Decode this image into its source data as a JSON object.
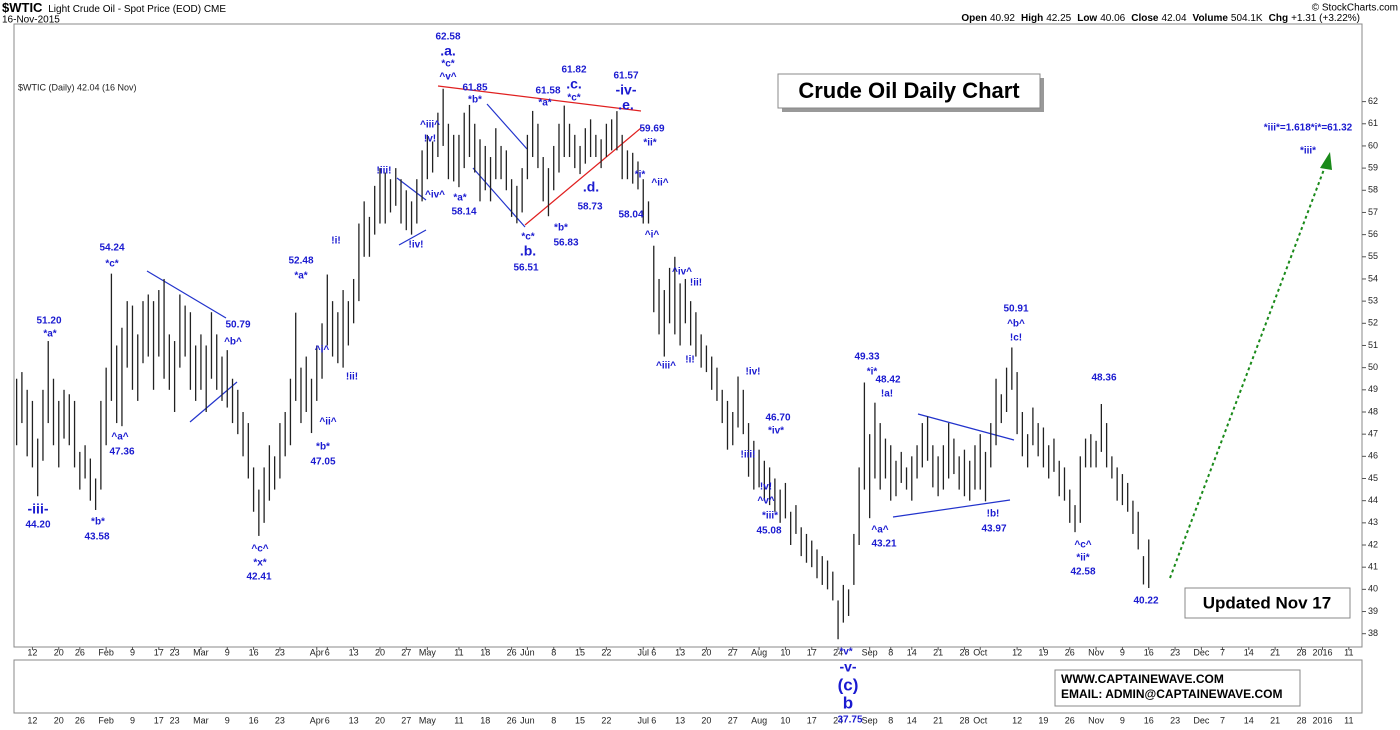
{
  "chart_data": {
    "type": "ohlc",
    "symbol": "$WTIC",
    "title": "Light Crude Oil - Spot Price (EOD) CME",
    "date": "16-Nov-2015",
    "quote": [
      {
        "label": "Open",
        "value": "40.92"
      },
      {
        "label": "High",
        "value": "42.25"
      },
      {
        "label": "Low",
        "value": "40.06"
      },
      {
        "label": "Close",
        "value": "42.04"
      },
      {
        "label": "Volume",
        "value": "504.1K"
      },
      {
        "label": "Chg",
        "value": "+1.31 (+3.22%)"
      }
    ],
    "credit": "© StockCharts.com",
    "legend": "$WTIC (Daily) 42.04 (16 Nov)",
    "headline": "Crude Oil Daily Chart",
    "updated": "Updated Nov 17",
    "website": "WWW.CAPTAINEWAVE.COM",
    "email": "EMAIL: ADMIN@CAPTAINEWAVE.COM",
    "color": "#222222",
    "annotation_color": "#1a1ad0",
    "categories": [
      null,
      null,
      null,
      "12",
      null,
      null,
      null,
      null,
      "20",
      null,
      null,
      null,
      "26",
      null,
      null,
      null,
      null,
      "Feb",
      null,
      null,
      null,
      null,
      "9",
      null,
      null,
      null,
      null,
      "17",
      null,
      null,
      "23",
      null,
      null,
      null,
      null,
      "Mar",
      null,
      null,
      null,
      null,
      "9",
      null,
      null,
      null,
      null,
      "16",
      null,
      null,
      null,
      null,
      "23",
      null,
      null,
      null,
      null,
      null,
      null,
      "Apr",
      null,
      "6",
      null,
      null,
      null,
      null,
      "13",
      null,
      null,
      null,
      null,
      "20",
      null,
      null,
      null,
      null,
      "27",
      null,
      null,
      null,
      "May",
      null,
      null,
      null,
      null,
      null,
      "11",
      null,
      null,
      null,
      null,
      "18",
      null,
      null,
      null,
      null,
      "26",
      null,
      null,
      "Jun",
      null,
      null,
      null,
      null,
      "8",
      null,
      null,
      null,
      null,
      "15",
      null,
      null,
      null,
      null,
      "22",
      null,
      null,
      null,
      null,
      null,
      null,
      "Jul",
      null,
      "6",
      null,
      null,
      null,
      null,
      "13",
      null,
      null,
      null,
      null,
      "20",
      null,
      null,
      null,
      null,
      "27",
      null,
      null,
      null,
      null,
      "Aug",
      null,
      null,
      null,
      null,
      "10",
      null,
      null,
      null,
      null,
      "17",
      null,
      null,
      null,
      null,
      "24",
      null,
      null,
      null,
      null,
      null,
      "Sep",
      null,
      null,
      null,
      "8",
      null,
      null,
      null,
      "14",
      null,
      null,
      null,
      null,
      "21",
      null,
      null,
      null,
      null,
      "28",
      null,
      null,
      "Oct",
      null,
      null,
      null,
      null,
      null,
      null,
      "12",
      null,
      null,
      null,
      null,
      "19",
      null,
      null,
      null,
      null,
      "26",
      null,
      null,
      null,
      null,
      "Nov",
      null,
      null,
      null,
      null,
      "9",
      null,
      null,
      null,
      null,
      "16",
      null,
      null,
      null,
      null,
      "23",
      null,
      null,
      null,
      null,
      "Dec",
      null,
      null,
      null,
      "7",
      null,
      null,
      null,
      null,
      "14",
      null,
      null,
      null,
      null,
      "21",
      null,
      null,
      null,
      null,
      "28",
      null,
      null,
      null,
      "2016",
      null,
      null,
      null,
      null,
      "11",
      null,
      null
    ],
    "high": [
      49.5,
      49.8,
      49.0,
      48.5,
      46.8,
      49.0,
      51.2,
      49.5,
      48.5,
      49.0,
      48.8,
      48.5,
      46.2,
      46.5,
      45.9,
      45.0,
      48.5,
      50.0,
      54.24,
      51.0,
      51.8,
      53.0,
      52.8,
      51.5,
      53.0,
      53.3,
      53.0,
      53.5,
      54.0,
      51.5,
      51.2,
      53.3,
      52.8,
      52.5,
      51.0,
      51.5,
      51.0,
      52.5,
      51.5,
      50.5,
      50.79,
      49.5,
      49.0,
      48.0,
      47.5,
      45.5,
      44.5,
      45.5,
      46.5,
      46.0,
      47.5,
      48.0,
      49.5,
      52.48,
      50.0,
      50.5,
      49.5,
      51.0,
      52.0,
      54.2,
      53.0,
      52.5,
      53.5,
      53.0,
      54.0,
      56.5,
      57.5,
      56.8,
      58.2,
      59.0,
      58.8,
      58.5,
      59.0,
      58.5,
      58.0,
      57.5,
      58.5,
      59.8,
      60.5,
      60.2,
      61.5,
      62.58,
      61.0,
      60.5,
      60.5,
      61.5,
      61.85,
      61.0,
      60.3,
      60.0,
      59.5,
      60.8,
      60.0,
      59.8,
      58.5,
      58.2,
      59.0,
      60.5,
      61.58,
      61.0,
      59.5,
      59.0,
      60.0,
      61.0,
      61.82,
      61.0,
      60.5,
      60.0,
      60.8,
      61.2,
      60.5,
      60.3,
      61.0,
      61.2,
      61.57,
      60.5,
      59.8,
      59.69,
      59.3,
      58.5,
      57.5,
      55.5,
      54.0,
      53.5,
      54.5,
      55.0,
      53.8,
      54.0,
      53.0,
      52.5,
      51.5,
      51.0,
      50.5,
      50.0,
      49.0,
      48.5,
      48.0,
      49.6,
      49.0,
      47.5,
      46.7,
      46.3,
      45.8,
      45.5,
      45.0,
      44.5,
      44.8,
      43.5,
      43.8,
      42.8,
      42.5,
      42.2,
      41.8,
      41.5,
      41.3,
      40.8,
      39.5,
      40.2,
      40.0,
      42.5,
      45.5,
      49.33,
      47.0,
      48.42,
      47.5,
      46.8,
      46.5,
      45.8,
      46.2,
      45.5,
      46.0,
      46.5,
      47.5,
      47.8,
      46.5,
      46.0,
      46.5,
      47.5,
      46.8,
      46.0,
      46.3,
      45.8,
      46.5,
      47.0,
      46.2,
      47.5,
      49.5,
      48.8,
      50.0,
      50.91,
      49.8,
      48.0,
      47.0,
      48.2,
      47.5,
      47.3,
      46.5,
      46.8,
      45.8,
      45.5,
      44.5,
      43.8,
      46.0,
      46.8,
      47.0,
      46.7,
      48.36,
      47.5,
      46.0,
      45.5,
      45.2,
      44.8,
      44.0,
      43.5,
      41.5,
      42.25,
      null,
      null,
      null,
      null,
      null,
      null,
      null,
      null,
      null,
      null,
      null,
      null,
      null,
      null,
      null,
      null,
      null,
      null,
      null,
      null,
      null,
      null,
      null,
      null,
      null,
      null,
      null,
      null,
      null,
      null,
      null,
      null,
      null,
      null,
      null,
      null,
      null,
      null,
      null,
      null
    ],
    "low": [
      46.5,
      47.5,
      46.0,
      45.5,
      44.2,
      45.8,
      47.5,
      46.5,
      45.5,
      46.8,
      46.5,
      45.5,
      44.5,
      45.0,
      44.0,
      43.58,
      44.5,
      46.5,
      48.5,
      47.5,
      47.36,
      50.0,
      49.0,
      48.5,
      50.2,
      50.5,
      49.0,
      50.5,
      49.5,
      49.0,
      48.0,
      50.0,
      50.5,
      49.0,
      48.5,
      49.0,
      48.0,
      49.5,
      49.0,
      48.5,
      48.2,
      47.5,
      47.0,
      46.0,
      45.0,
      43.5,
      42.41,
      43.0,
      44.0,
      44.5,
      45.0,
      46.0,
      46.5,
      48.5,
      47.5,
      48.0,
      47.05,
      48.5,
      49.5,
      51.0,
      50.5,
      50.2,
      50.0,
      51.0,
      52.0,
      53.0,
      55.0,
      55.0,
      56.0,
      56.5,
      56.5,
      57.0,
      57.3,
      56.5,
      56.2,
      56.0,
      56.5,
      57.5,
      58.5,
      58.8,
      59.5,
      60.0,
      58.5,
      58.4,
      58.14,
      59.0,
      59.5,
      58.8,
      57.5,
      58.0,
      57.5,
      58.5,
      58.5,
      58.0,
      56.8,
      56.51,
      57.0,
      58.5,
      59.5,
      59.0,
      57.5,
      56.83,
      58.0,
      58.8,
      59.5,
      59.5,
      59.0,
      58.73,
      59.2,
      59.5,
      59.5,
      59.0,
      59.5,
      59.8,
      59.8,
      58.5,
      58.5,
      58.3,
      58.04,
      56.5,
      56.5,
      52.5,
      51.5,
      50.5,
      52.0,
      51.5,
      51.0,
      52.0,
      51.0,
      50.5,
      50.0,
      49.8,
      49.0,
      48.5,
      47.5,
      46.3,
      46.5,
      47.3,
      47.0,
      45.08,
      44.5,
      44.6,
      44.0,
      43.8,
      43.5,
      43.0,
      43.2,
      42.0,
      42.5,
      41.5,
      41.2,
      41.0,
      40.5,
      40.2,
      40.0,
      39.5,
      37.75,
      38.5,
      38.8,
      40.2,
      42.0,
      44.5,
      43.21,
      45.0,
      44.5,
      45.0,
      44.0,
      44.2,
      44.8,
      44.5,
      44.0,
      45.0,
      45.5,
      45.8,
      44.6,
      44.2,
      44.5,
      45.0,
      45.2,
      44.5,
      44.2,
      44.0,
      44.5,
      44.5,
      43.97,
      45.5,
      46.5,
      47.5,
      48.0,
      49.0,
      47.0,
      46.0,
      45.5,
      46.5,
      46.0,
      45.5,
      45.0,
      45.3,
      44.2,
      44.0,
      43.0,
      42.58,
      43.0,
      45.5,
      45.5,
      45.5,
      46.2,
      45.5,
      45.0,
      44.0,
      43.8,
      43.5,
      42.5,
      41.8,
      40.22,
      40.06,
      null,
      null,
      null,
      null,
      null,
      null,
      null,
      null,
      null,
      null,
      null,
      null,
      null,
      null,
      null,
      null,
      null,
      null,
      null,
      null,
      null,
      null,
      null,
      null,
      null,
      null,
      null,
      null,
      null,
      null,
      null,
      null,
      null,
      null,
      null,
      null,
      null,
      null,
      null,
      null
    ],
    "ylim": [
      37.4,
      65.5
    ],
    "yticks": [
      38,
      39,
      40,
      41,
      42,
      43,
      44,
      45,
      46,
      47,
      48,
      49,
      50,
      51,
      52,
      53,
      54,
      55,
      56,
      57,
      58,
      59,
      60,
      61,
      62
    ],
    "annotations": [
      "62.58",
      ".a.",
      "*c*",
      "^v^",
      "61.85",
      "*b*",
      "61.58",
      "*a*",
      "61.82",
      ".c.",
      "*c*",
      "61.57",
      "-iv-",
      ".e.",
      "59.69",
      "*ii*",
      "^ii^",
      "*i*",
      "58.04",
      "^i^",
      ".d.",
      "58.73",
      "*b*",
      "56.83",
      "*c*",
      ".b.",
      "56.51",
      "^iii^",
      "!v!",
      "^iv^",
      "*a*",
      "58.14",
      "!iii!",
      "!iv!",
      "!i!",
      "!ii!",
      "52.48",
      "*a*",
      "^i^",
      "^ii^",
      "*b*",
      "47.05",
      "54.24",
      "*c*",
      "51.20",
      "*a*",
      "^a^",
      "47.36",
      "-iii-",
      "44.20",
      "*b*",
      "43.58",
      "50.79",
      "^b^",
      "^c^",
      "*x*",
      "42.41",
      "^iv^",
      "!ii!",
      "!i!",
      "^iii^",
      "!iv!",
      "!iii!",
      "46.70",
      "*iv*",
      "!v!",
      "^v^",
      "*iii*",
      "45.08",
      "49.33",
      "*i*",
      "48.42",
      "!a!",
      "^a^",
      "43.21",
      "!b!",
      "43.97",
      "50.91",
      "^b^",
      "!c!",
      "48.36",
      "^c^",
      "*ii*",
      "42.58",
      "40.22",
      "*iii*=1.618*i*=61.32",
      "*iii*",
      "*v*",
      "-v-",
      "(c)",
      "b",
      "37.75"
    ]
  }
}
